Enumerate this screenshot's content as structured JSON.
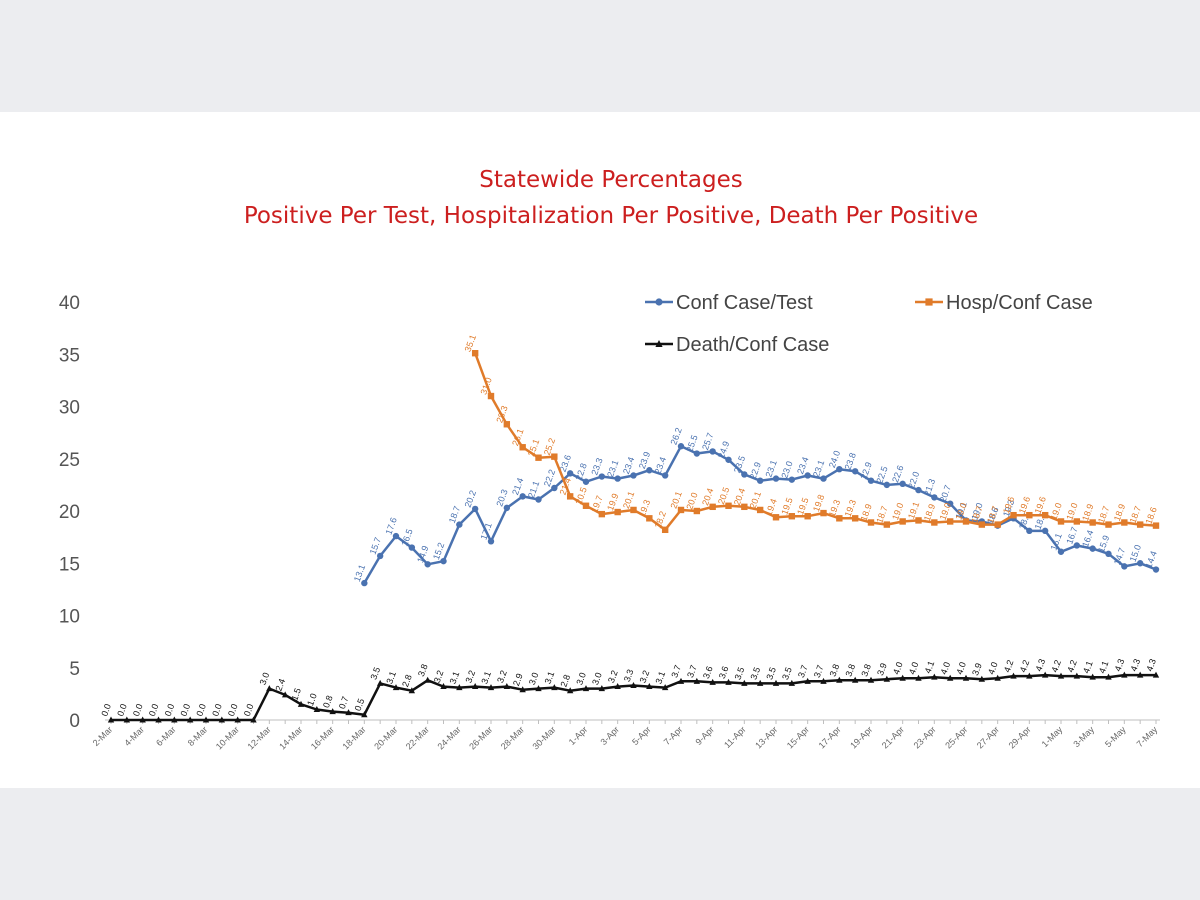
{
  "chart_data": {
    "type": "line",
    "title": "Statewide Percentages",
    "subtitle": "Positive Per Test, Hospitalization Per Positive, Death Per Positive",
    "xlabel": "",
    "ylabel": "",
    "ylim": [
      0,
      40
    ],
    "yticks": [
      0,
      5,
      10,
      15,
      20,
      25,
      30,
      35,
      40
    ],
    "grid": false,
    "legend": "top-right",
    "categories": [
      "2-Mar",
      "3-Mar",
      "4-Mar",
      "5-Mar",
      "6-Mar",
      "7-Mar",
      "8-Mar",
      "9-Mar",
      "10-Mar",
      "11-Mar",
      "12-Mar",
      "13-Mar",
      "14-Mar",
      "15-Mar",
      "16-Mar",
      "17-Mar",
      "18-Mar",
      "19-Mar",
      "20-Mar",
      "21-Mar",
      "22-Mar",
      "23-Mar",
      "24-Mar",
      "25-Mar",
      "26-Mar",
      "27-Mar",
      "28-Mar",
      "29-Mar",
      "30-Mar",
      "31-Mar",
      "1-Apr",
      "2-Apr",
      "3-Apr",
      "4-Apr",
      "5-Apr",
      "6-Apr",
      "7-Apr",
      "8-Apr",
      "9-Apr",
      "10-Apr",
      "11-Apr",
      "12-Apr",
      "13-Apr",
      "14-Apr",
      "15-Apr",
      "16-Apr",
      "17-Apr",
      "18-Apr",
      "19-Apr",
      "20-Apr",
      "21-Apr",
      "22-Apr",
      "23-Apr",
      "24-Apr",
      "25-Apr",
      "26-Apr",
      "27-Apr",
      "28-Apr",
      "29-Apr",
      "30-Apr",
      "1-May",
      "2-May",
      "3-May",
      "4-May",
      "5-May",
      "6-May",
      "7-May"
    ],
    "series": [
      {
        "name": "Conf Case/Test",
        "color": "#4a72b0",
        "marker": "circle",
        "values": [
          null,
          null,
          null,
          null,
          null,
          null,
          null,
          null,
          null,
          null,
          null,
          null,
          null,
          null,
          null,
          null,
          13.1,
          15.7,
          17.6,
          16.5,
          14.9,
          15.2,
          18.7,
          20.2,
          17.1,
          20.3,
          21.4,
          21.1,
          22.2,
          23.6,
          22.8,
          23.3,
          23.1,
          23.4,
          23.9,
          23.4,
          26.2,
          25.5,
          25.7,
          24.9,
          23.5,
          22.9,
          23.1,
          23.0,
          23.4,
          23.1,
          24.0,
          23.8,
          22.9,
          22.5,
          22.6,
          22.0,
          21.3,
          20.7,
          19.1,
          19.0,
          18.6,
          19.3,
          18.1,
          18.1,
          16.1,
          16.7,
          16.4,
          15.9,
          14.7,
          15.0,
          14.4
        ],
        "labels": [
          "",
          "",
          "",
          "",
          "",
          "",
          "",
          "",
          "",
          "",
          "",
          "",
          "",
          "",
          "",
          "",
          "13.1",
          "15.7",
          "17.6",
          "16.5",
          "14.9",
          "15.2",
          "18.7",
          "20.2",
          "17.1",
          "20.3",
          "21.4",
          "21.1",
          "22.2",
          "23.6",
          "22.8",
          "23.3",
          "23.1",
          "23.4",
          "23.9",
          "23.4",
          "26.2",
          "25.5",
          "25.7",
          "24.9",
          "23.5",
          "22.9",
          "23.1",
          "23.0",
          "23.4",
          "23.1",
          "24.0",
          "23.8",
          "22.9",
          "22.5",
          "22.6",
          "22.0",
          "21.3",
          "20.7",
          "19.1",
          "19.0",
          "18.6",
          "19.3",
          "18.1",
          "18.1",
          "16.1",
          "16.7",
          "16.4",
          "15.9",
          "14.7",
          "15.0",
          "14.4"
        ]
      },
      {
        "name": "Hosp/Conf Case",
        "color": "#e07b2a",
        "marker": "square",
        "values": [
          null,
          null,
          null,
          null,
          null,
          null,
          null,
          null,
          null,
          null,
          null,
          null,
          null,
          null,
          null,
          null,
          null,
          null,
          null,
          null,
          null,
          null,
          null,
          35.1,
          31.0,
          28.3,
          26.1,
          25.1,
          25.2,
          21.4,
          20.5,
          19.7,
          19.9,
          20.1,
          19.3,
          18.2,
          20.1,
          20.0,
          20.4,
          20.5,
          20.4,
          20.1,
          19.4,
          19.5,
          19.5,
          19.8,
          19.3,
          19.3,
          18.9,
          18.7,
          19.0,
          19.1,
          18.9,
          19.0,
          19.0,
          18.7,
          18.7,
          19.6,
          19.6,
          19.6,
          19.0,
          19.0,
          18.9,
          18.7,
          18.9,
          18.7,
          18.6
        ],
        "labels": [
          "",
          "",
          "",
          "",
          "",
          "",
          "",
          "",
          "",
          "",
          "",
          "",
          "",
          "",
          "",
          "",
          "",
          "",
          "",
          "",
          "",
          "",
          "",
          "35.1",
          "31.0",
          "28.3",
          "26.1",
          "25.1",
          "25.2",
          "21.4",
          "20.5",
          "19.7",
          "19.9",
          "20.1",
          "19.3",
          "18.2",
          "20.1",
          "20.0",
          "20.4",
          "20.5",
          "20.4",
          "20.1",
          "19.4",
          "19.5",
          "19.5",
          "19.8",
          "19.3",
          "19.3",
          "18.9",
          "18.7",
          "19.0",
          "19.1",
          "18.9",
          "19.0",
          "19.0",
          "18.7",
          "18.7",
          "19.6",
          "19.6",
          "19.6",
          "19.0",
          "19.0",
          "18.9",
          "18.7",
          "18.9",
          "18.7",
          "18.6"
        ]
      },
      {
        "name": "Death/Conf Case",
        "color": "#111111",
        "marker": "triangle",
        "values": [
          0.0,
          0.0,
          0.0,
          0.0,
          0.0,
          0.0,
          0.0,
          0.0,
          0.0,
          0.0,
          3.0,
          2.4,
          1.5,
          1.0,
          0.8,
          0.7,
          0.5,
          3.5,
          3.1,
          2.8,
          3.8,
          3.2,
          3.1,
          3.2,
          3.1,
          3.2,
          2.9,
          3.0,
          3.1,
          2.8,
          3.0,
          3.0,
          3.2,
          3.3,
          3.2,
          3.1,
          3.7,
          3.7,
          3.6,
          3.6,
          3.5,
          3.5,
          3.5,
          3.5,
          3.7,
          3.7,
          3.8,
          3.8,
          3.8,
          3.9,
          4.0,
          4.0,
          4.1,
          4.0,
          4.0,
          3.9,
          4.0,
          4.2,
          4.2,
          4.3,
          4.2,
          4.2,
          4.1,
          4.1,
          4.3,
          4.3,
          4.3
        ],
        "labels": [
          "0.0",
          "0.0",
          "0.0",
          "0.0",
          "0.0",
          "0.0",
          "0.0",
          "0.0",
          "0.0",
          "0.0",
          "3.0",
          "2.4",
          "1.5",
          "1.0",
          "0.8",
          "0.7",
          "0.5",
          "3.5",
          "3.1",
          "2.8",
          "3.8",
          "3.2",
          "3.1",
          "3.2",
          "3.1",
          "3.2",
          "2.9",
          "3.0",
          "3.1",
          "2.8",
          "3.0",
          "3.0",
          "3.2",
          "3.3",
          "3.2",
          "3.1",
          "3.7",
          "3.7",
          "3.6",
          "3.6",
          "3.5",
          "3.5",
          "3.5",
          "3.5",
          "3.7",
          "3.7",
          "3.8",
          "3.8",
          "3.8",
          "3.9",
          "4.0",
          "4.0",
          "4.1",
          "4.0",
          "4.0",
          "3.9",
          "4.0",
          "4.2",
          "4.2",
          "4.3",
          "4.2",
          "4.2",
          "4.1",
          "4.1",
          "4.3",
          "4.3",
          "4.3"
        ]
      }
    ]
  }
}
